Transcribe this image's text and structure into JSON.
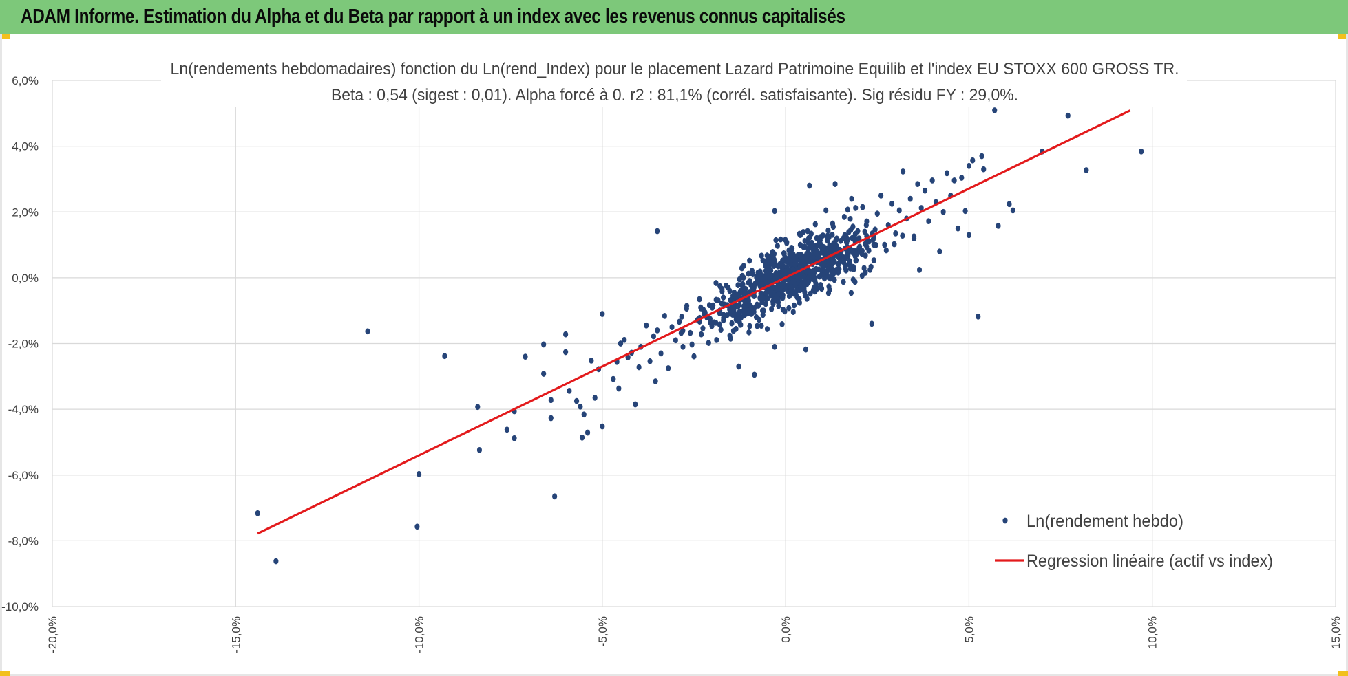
{
  "header": {
    "title": "ADAM Informe. Estimation du Alpha et du Beta par rapport à un index avec les revenus connus capitalisés"
  },
  "colors": {
    "banner": "#7dc87a",
    "corner_accent": "#f2c01d",
    "points": "#264478",
    "regression": "#e31a1c",
    "grid": "#d9d9d9"
  },
  "chart_data": {
    "type": "scatter",
    "title": "Ln(rendements hebdomadaires) fonction du Ln(rend_Index) pour le placement Lazard Patrimoine Equilib et l'index EU STOXX 600 GROSS TR.",
    "subtitle": "Beta : 0,54 (sigest : 0,01). Alpha forcé à 0. r2 : 81,1% (corrél. satisfaisante). Sig résidu FY : 29,0%.",
    "xlim": [
      -0.2,
      0.15
    ],
    "ylim": [
      -0.1,
      0.06
    ],
    "x_ticks": [
      {
        "value": -0.2,
        "label": "-20,0%"
      },
      {
        "value": -0.15,
        "label": "-15,0%"
      },
      {
        "value": -0.1,
        "label": "-10,0%"
      },
      {
        "value": -0.05,
        "label": "-5,0%"
      },
      {
        "value": 0.0,
        "label": "0,0%"
      },
      {
        "value": 0.05,
        "label": "5,0%"
      },
      {
        "value": 0.1,
        "label": "10,0%"
      },
      {
        "value": 0.15,
        "label": "15,0%"
      }
    ],
    "y_ticks": [
      {
        "value": 0.06,
        "label": "6,0%"
      },
      {
        "value": 0.04,
        "label": "4,0%"
      },
      {
        "value": 0.02,
        "label": "2,0%"
      },
      {
        "value": 0.0,
        "label": "0,0%"
      },
      {
        "value": -0.02,
        "label": "-2,0%"
      },
      {
        "value": -0.04,
        "label": "-4,0%"
      },
      {
        "value": -0.06,
        "label": "-6,0%"
      },
      {
        "value": -0.08,
        "label": "-8,0%"
      },
      {
        "value": -0.1,
        "label": "-10,0%"
      }
    ],
    "grid": true,
    "legend_position": "bottom-right",
    "series": [
      {
        "name": "Ln(rendement hebdo)",
        "kind": "scatter",
        "points": [
          [
            -0.144,
            -0.0716
          ],
          [
            -0.139,
            -0.0862
          ],
          [
            -0.114,
            -0.0163
          ],
          [
            -0.1,
            -0.0597
          ],
          [
            -0.1005,
            -0.0757
          ],
          [
            -0.093,
            -0.0238
          ],
          [
            -0.084,
            -0.0393
          ],
          [
            -0.0835,
            -0.0524
          ],
          [
            -0.076,
            -0.0462
          ],
          [
            -0.074,
            -0.0488
          ],
          [
            -0.074,
            -0.0406
          ],
          [
            -0.071,
            -0.024
          ],
          [
            -0.066,
            -0.0292
          ],
          [
            -0.066,
            -0.0203
          ],
          [
            -0.064,
            -0.0372
          ],
          [
            -0.064,
            -0.0427
          ],
          [
            -0.063,
            -0.0665
          ],
          [
            -0.06,
            -0.0172
          ],
          [
            -0.06,
            -0.0226
          ],
          [
            -0.059,
            -0.0344
          ],
          [
            -0.057,
            -0.0375
          ],
          [
            -0.056,
            -0.0392
          ],
          [
            -0.0555,
            -0.0486
          ],
          [
            -0.055,
            -0.0416
          ],
          [
            -0.054,
            -0.0471
          ],
          [
            -0.053,
            -0.0252
          ],
          [
            -0.052,
            -0.0365
          ],
          [
            -0.051,
            -0.0278
          ],
          [
            -0.05,
            -0.011
          ],
          [
            -0.05,
            -0.0452
          ],
          [
            -0.047,
            -0.0308
          ],
          [
            -0.046,
            -0.0256
          ],
          [
            -0.045,
            -0.02
          ],
          [
            -0.044,
            -0.0189
          ],
          [
            -0.043,
            -0.0242
          ],
          [
            -0.042,
            -0.0228
          ],
          [
            -0.0455,
            -0.0337
          ],
          [
            -0.041,
            -0.0385
          ],
          [
            -0.04,
            -0.0272
          ],
          [
            -0.0395,
            -0.021
          ],
          [
            -0.038,
            -0.0145
          ],
          [
            -0.037,
            -0.0254
          ],
          [
            -0.036,
            -0.0178
          ],
          [
            -0.0355,
            -0.0315
          ],
          [
            -0.035,
            -0.016
          ],
          [
            -0.034,
            -0.023
          ],
          [
            -0.033,
            -0.0116
          ],
          [
            -0.032,
            -0.0275
          ],
          [
            -0.031,
            -0.015
          ],
          [
            -0.035,
            0.0142
          ],
          [
            -0.03,
            -0.019
          ],
          [
            -0.029,
            -0.0134
          ],
          [
            -0.028,
            -0.021
          ],
          [
            -0.027,
            -0.0094
          ],
          [
            -0.026,
            -0.0168
          ],
          [
            -0.025,
            -0.0239
          ],
          [
            -0.024,
            -0.0128
          ],
          [
            -0.0235,
            -0.0065
          ],
          [
            -0.023,
            -0.0172
          ],
          [
            -0.022,
            -0.0105
          ],
          [
            -0.021,
            -0.0198
          ],
          [
            -0.02,
            -0.0091
          ],
          [
            -0.019,
            -0.0016
          ],
          [
            -0.018,
            -0.0142
          ],
          [
            -0.017,
            -0.006
          ],
          [
            -0.016,
            -0.0114
          ],
          [
            -0.015,
            -0.0185
          ],
          [
            -0.014,
            -0.0045
          ],
          [
            -0.013,
            -0.0088
          ],
          [
            -0.0128,
            -0.027
          ],
          [
            -0.012,
            -0.0022
          ],
          [
            -0.011,
            -0.0096
          ],
          [
            -0.01,
            -0.0166
          ],
          [
            -0.0095,
            -0.0045
          ],
          [
            -0.009,
            0.0012
          ],
          [
            -0.0085,
            -0.0295
          ],
          [
            -0.008,
            -0.012
          ],
          [
            -0.007,
            -0.0062
          ],
          [
            -0.0065,
            -0.002
          ],
          [
            -0.006,
            -0.01
          ],
          [
            -0.005,
            -0.0156
          ],
          [
            -0.0045,
            0.003
          ],
          [
            -0.004,
            -0.004
          ],
          [
            -0.003,
            -0.021
          ],
          [
            -0.003,
            0.0203
          ],
          [
            -0.002,
            -0.0075
          ],
          [
            -0.0015,
            0.0042
          ],
          [
            -0.001,
            -0.002
          ],
          [
            0.0,
            0.001
          ],
          [
            0.001,
            -0.0056
          ],
          [
            0.0015,
            0.008
          ],
          [
            0.002,
            0.0025
          ],
          [
            0.003,
            -0.004
          ],
          [
            0.004,
            0.01
          ],
          [
            0.005,
            0.0035
          ],
          [
            0.0055,
            -0.0218
          ],
          [
            0.006,
            0.0142
          ],
          [
            0.0065,
            0.028
          ],
          [
            0.007,
            0.006
          ],
          [
            0.008,
            -0.0008
          ],
          [
            0.009,
            0.012
          ],
          [
            0.01,
            0.0045
          ],
          [
            0.011,
            0.0205
          ],
          [
            0.012,
            0.009
          ],
          [
            0.013,
            0.0155
          ],
          [
            0.0135,
            0.0285
          ],
          [
            0.014,
            0.002
          ],
          [
            0.015,
            0.0112
          ],
          [
            0.016,
            0.0185
          ],
          [
            0.017,
            0.0066
          ],
          [
            0.018,
            0.024
          ],
          [
            0.019,
            0.0133
          ],
          [
            0.02,
            0.009
          ],
          [
            0.021,
            0.0215
          ],
          [
            0.022,
            0.016
          ],
          [
            0.023,
            0.0024
          ],
          [
            0.0235,
            -0.014
          ],
          [
            0.024,
            0.0125
          ],
          [
            0.025,
            0.0195
          ],
          [
            0.026,
            0.025
          ],
          [
            0.027,
            0.01
          ],
          [
            0.028,
            0.016
          ],
          [
            0.029,
            0.0225
          ],
          [
            0.03,
            0.0135
          ],
          [
            0.031,
            0.0205
          ],
          [
            0.032,
            0.0323
          ],
          [
            0.033,
            0.018
          ],
          [
            0.034,
            0.024
          ],
          [
            0.035,
            0.012
          ],
          [
            0.036,
            0.0285
          ],
          [
            0.037,
            0.0212
          ],
          [
            0.0365,
            0.0024
          ],
          [
            0.038,
            0.0265
          ],
          [
            0.039,
            0.0172
          ],
          [
            0.04,
            0.0296
          ],
          [
            0.041,
            0.023
          ],
          [
            0.042,
            0.008
          ],
          [
            0.043,
            0.02
          ],
          [
            0.044,
            0.0318
          ],
          [
            0.045,
            0.025
          ],
          [
            0.046,
            0.0296
          ],
          [
            0.047,
            0.015
          ],
          [
            0.048,
            0.0304
          ],
          [
            0.049,
            0.0203
          ],
          [
            0.05,
            0.034
          ],
          [
            0.05,
            0.013
          ],
          [
            0.051,
            0.0357
          ],
          [
            0.0525,
            -0.0118
          ],
          [
            0.0535,
            0.037
          ],
          [
            0.054,
            0.033
          ],
          [
            0.057,
            0.0509
          ],
          [
            0.058,
            0.0158
          ],
          [
            0.061,
            0.0224
          ],
          [
            0.062,
            0.0205
          ],
          [
            0.07,
            0.0384
          ],
          [
            0.077,
            0.0493
          ],
          [
            0.082,
            0.0327
          ],
          [
            0.097,
            0.0384
          ]
        ],
        "dense_cluster": {
          "beta": 0.54,
          "x_range": [
            -0.03,
            0.035
          ],
          "residual_sd": 0.0045,
          "count": 760
        }
      },
      {
        "name": "Regression linéaire (actif vs index)",
        "kind": "line",
        "points": [
          [
            -0.144,
            -0.0778
          ],
          [
            0.094,
            0.0509
          ]
        ]
      }
    ]
  }
}
